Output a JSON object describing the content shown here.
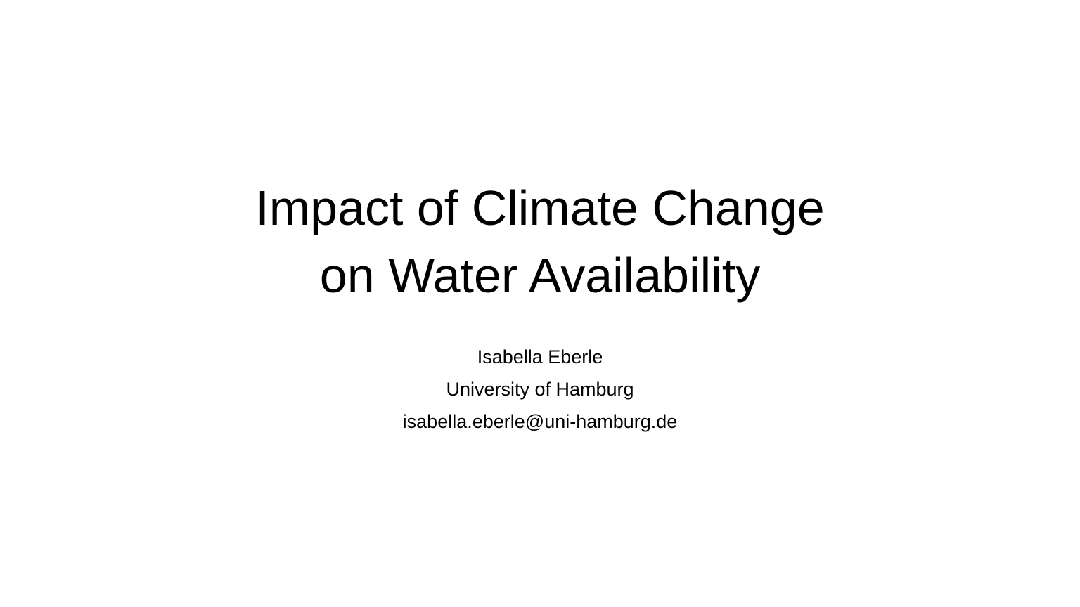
{
  "slide": {
    "title_lines": [
      "Impact of Climate Change",
      "on Water Availability"
    ],
    "author": "Isabella Eberle",
    "affiliation": "University of Hamburg",
    "email": "isabella.eberle@uni-hamburg.de"
  },
  "colors": {
    "background": "#ffffff",
    "text": "#000000"
  }
}
